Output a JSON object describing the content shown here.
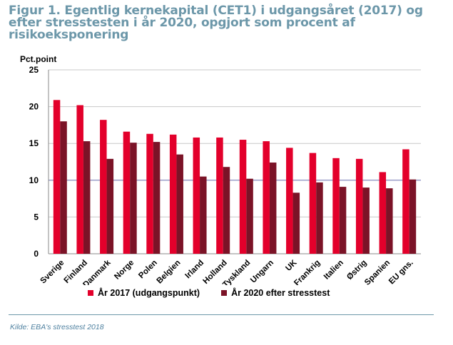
{
  "title": {
    "line1": "Figur 1. Egentlig kernekapital (CET1) i udgangsåret (2017) og",
    "line2": "efter stresstesten i år 2020, opgjort som procent af",
    "line3": "risikoeksponering"
  },
  "source": "Kilde: EBA's stresstest 2018",
  "colors": {
    "series_2017": "#e3002b",
    "series_2020": "#7b1327",
    "gridline": "#c8c8c8",
    "reference_line": "#9a9cc8",
    "title": "#6c97a9"
  },
  "chart_data": {
    "type": "bar",
    "ylabel": "Pct.point",
    "ylim": [
      0,
      25
    ],
    "yticks": [
      "0",
      "5",
      "10",
      "15",
      "20",
      "25"
    ],
    "grid": true,
    "reference_line": 10,
    "legend_position": "bottom",
    "categories": [
      "Sverige",
      "Finland",
      "Danmark",
      "Norge",
      "Polen",
      "Belgien",
      "Irland",
      "Holland",
      "Tyskland",
      "Ungarn",
      "UK",
      "Frankrig",
      "Italien",
      "Østrig",
      "Spanien",
      "EU gns."
    ],
    "series": [
      {
        "name": "År 2017 (udgangspunkt)",
        "values": [
          20.9,
          20.2,
          18.2,
          16.6,
          16.3,
          16.2,
          15.8,
          15.8,
          15.5,
          15.3,
          14.4,
          13.7,
          13.0,
          12.9,
          11.1,
          14.2
        ]
      },
      {
        "name": "År 2020 efter stresstest",
        "values": [
          18.0,
          15.3,
          12.9,
          15.1,
          15.2,
          13.5,
          10.5,
          11.8,
          10.2,
          12.4,
          8.3,
          9.7,
          9.1,
          9.0,
          8.9,
          10.1
        ]
      }
    ]
  }
}
